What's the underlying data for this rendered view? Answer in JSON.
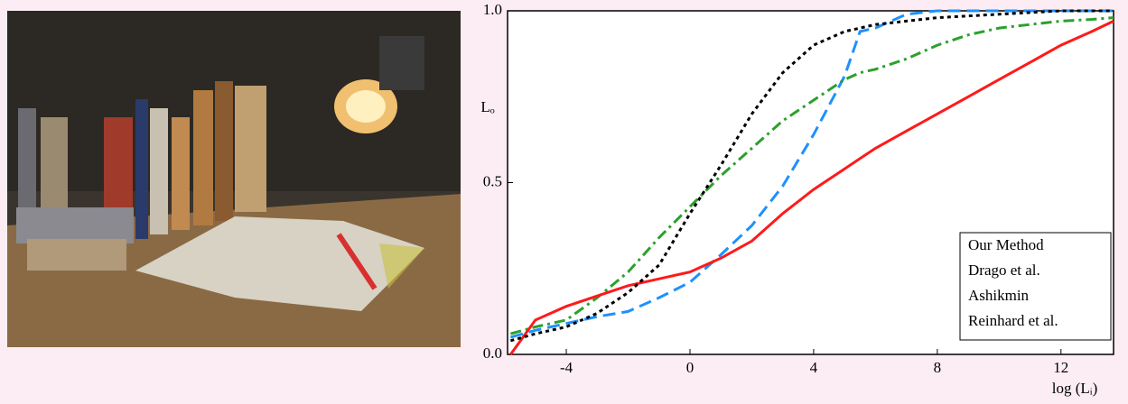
{
  "chart_data": {
    "type": "line",
    "xlabel": "log (Lᵢ)",
    "ylabel": "Lₒ",
    "x": [
      -5.8,
      -5,
      -4,
      -3,
      -2,
      -1,
      0,
      1,
      2,
      3,
      4,
      5,
      5.5,
      6,
      7,
      8,
      9,
      10,
      11,
      12,
      13,
      13.7
    ],
    "series": [
      {
        "name": "Our Method",
        "color": "#1e90ff",
        "linestyle": "dashed",
        "values": [
          0.05,
          0.07,
          0.09,
          0.11,
          0.125,
          0.165,
          0.21,
          0.29,
          0.375,
          0.49,
          0.64,
          0.81,
          0.94,
          0.95,
          0.99,
          1.0,
          1.0,
          1.0,
          1.0,
          1.0,
          1.0,
          1.0
        ]
      },
      {
        "name": "Drago et al.",
        "color": "#2ca02c",
        "linestyle": "dashdot",
        "values": [
          0.06,
          0.08,
          0.1,
          0.165,
          0.24,
          0.34,
          0.43,
          0.52,
          0.6,
          0.68,
          0.74,
          0.8,
          0.82,
          0.83,
          0.86,
          0.9,
          0.93,
          0.95,
          0.96,
          0.97,
          0.975,
          0.98
        ]
      },
      {
        "name": "Ashikmin",
        "color": "#ff1a1a",
        "linestyle": "solid",
        "values": [
          0.0,
          0.1,
          0.14,
          0.17,
          0.2,
          0.22,
          0.24,
          0.28,
          0.33,
          0.41,
          0.48,
          0.54,
          0.57,
          0.6,
          0.65,
          0.7,
          0.75,
          0.8,
          0.85,
          0.9,
          0.94,
          0.97
        ]
      },
      {
        "name": "Reinhard et al.",
        "color": "#000000",
        "linestyle": "dotted",
        "values": [
          0.04,
          0.06,
          0.08,
          0.12,
          0.18,
          0.26,
          0.41,
          0.55,
          0.7,
          0.82,
          0.9,
          0.94,
          0.95,
          0.96,
          0.97,
          0.98,
          0.985,
          0.99,
          0.995,
          1.0,
          1.0,
          1.0
        ]
      }
    ],
    "xlim": [
      -5.9,
      13.7
    ],
    "xticks": [
      -4,
      0,
      4,
      8,
      12
    ],
    "ylim": [
      0,
      1
    ],
    "yticks": [
      {
        "value": 0,
        "label": "0.0"
      },
      {
        "value": 0.5,
        "label": "0.5"
      },
      {
        "value": 1,
        "label": "1.0"
      }
    ],
    "legend": "lower right"
  }
}
